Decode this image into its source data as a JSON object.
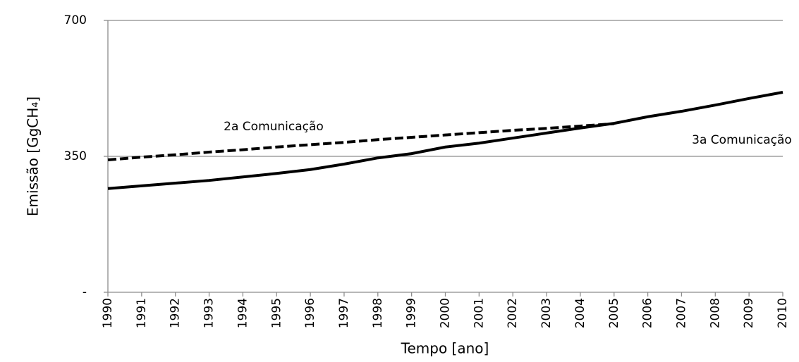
{
  "chart_data": {
    "type": "line",
    "categories": [
      "1990",
      "1991",
      "1992",
      "1993",
      "1994",
      "1995",
      "1996",
      "1997",
      "1998",
      "1999",
      "2000",
      "2001",
      "2002",
      "2003",
      "2004",
      "2005",
      "2006",
      "2007",
      "2008",
      "2009",
      "2010"
    ],
    "series": [
      {
        "name": "2a Comunicação",
        "color": "#000000",
        "dash": true,
        "values": [
          341,
          348,
          354,
          361,
          367,
          374,
          380,
          386,
          393,
          399,
          405,
          411,
          417,
          422,
          428,
          434,
          null,
          null,
          null,
          null,
          null
        ]
      },
      {
        "name": "3a Comunicação",
        "color": "#000000",
        "dash": false,
        "values": [
          267,
          274,
          281,
          288,
          297,
          306,
          316,
          330,
          346,
          357,
          374,
          384,
          397,
          410,
          423,
          435,
          452,
          466,
          482,
          499,
          515
        ]
      }
    ],
    "x_label": "Tempo [ano]",
    "y_label": "Emissão [GgCH₄]",
    "ylim": [
      0,
      700
    ],
    "yticks": [
      {
        "value": 0,
        "label": "-"
      },
      350,
      700
    ],
    "grid": true
  }
}
